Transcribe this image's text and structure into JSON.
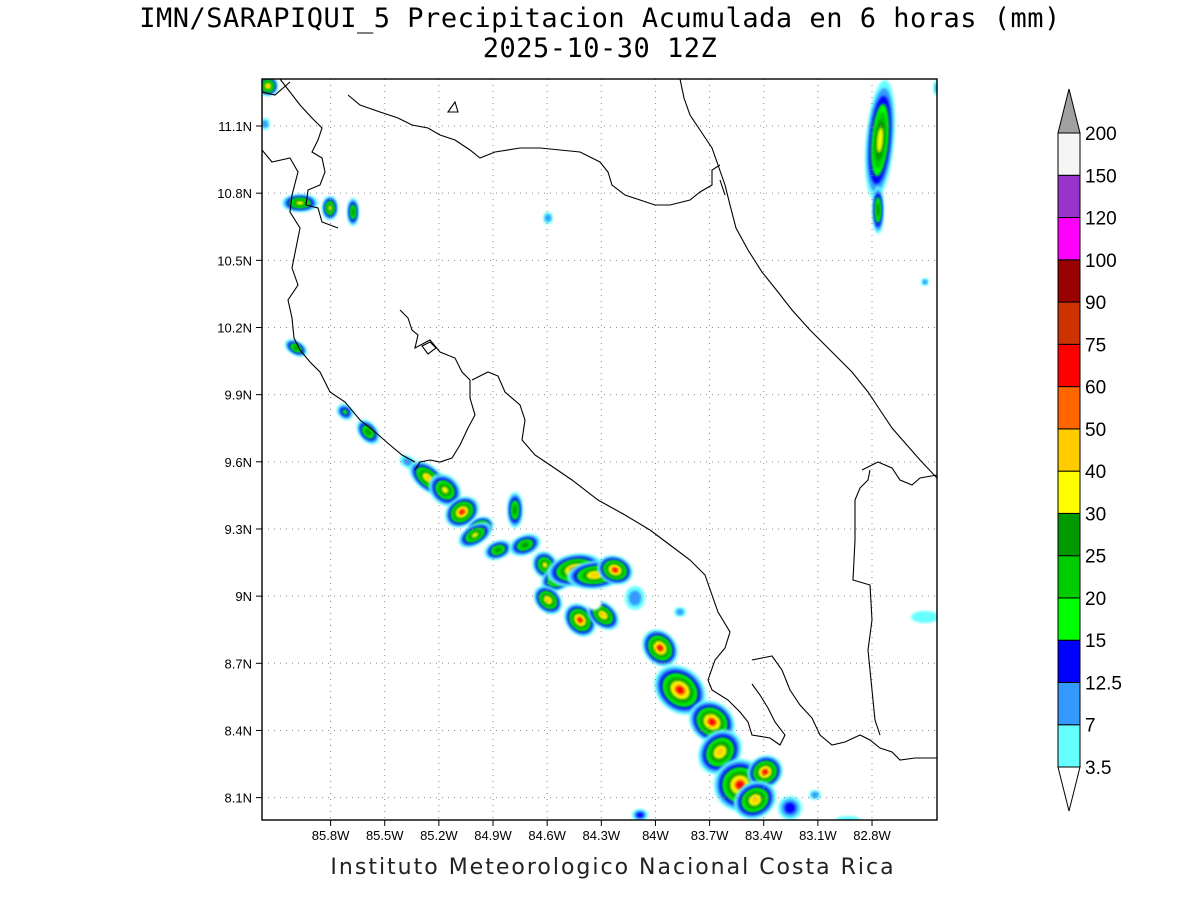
{
  "title_line1": "IMN/SARAPIQUI_5 Precipitacion Acumulada en 6 horas (mm)",
  "title_line2": "2025-10-30 12Z",
  "credit": "Instituto Meteorologico Nacional Costa Rica",
  "map": {
    "lon_range": [
      -86.18,
      -82.44
    ],
    "lat_range": [
      8.0,
      11.31
    ],
    "grid": "dotted",
    "lon_ticks": [
      -85.8,
      -85.5,
      -85.2,
      -84.9,
      -84.6,
      -84.3,
      -84.0,
      -83.7,
      -83.4,
      -83.1,
      -82.8
    ],
    "lon_tick_labels": [
      "85.8W",
      "85.5W",
      "85.2W",
      "84.9W",
      "84.6W",
      "84.3W",
      "84W",
      "83.7W",
      "83.4W",
      "83.1W",
      "82.8W"
    ],
    "lat_ticks": [
      8.1,
      8.4,
      8.7,
      9.0,
      9.3,
      9.6,
      9.9,
      10.2,
      10.5,
      10.8,
      11.1
    ],
    "lat_tick_labels": [
      "8.1N",
      "8.4N",
      "8.7N",
      "9N",
      "9.3N",
      "9.6N",
      "9.9N",
      "10.2N",
      "10.5N",
      "10.8N",
      "11.1N"
    ]
  },
  "colorbar": {
    "labels": [
      "3.5",
      "7",
      "12.5",
      "15",
      "20",
      "25",
      "30",
      "40",
      "50",
      "60",
      "75",
      "90",
      "100",
      "120",
      "150",
      "200"
    ],
    "colors": [
      "#66ffff",
      "#3399ff",
      "#0000ff",
      "#00ff00",
      "#00cc00",
      "#009900",
      "#ffff00",
      "#ffcc00",
      "#ff6600",
      "#ff0000",
      "#cc3300",
      "#990000",
      "#ff00ff",
      "#9933cc",
      "#f5f5f5"
    ],
    "over_color": "#a0a0a0",
    "under_color": "#ffffff"
  }
}
